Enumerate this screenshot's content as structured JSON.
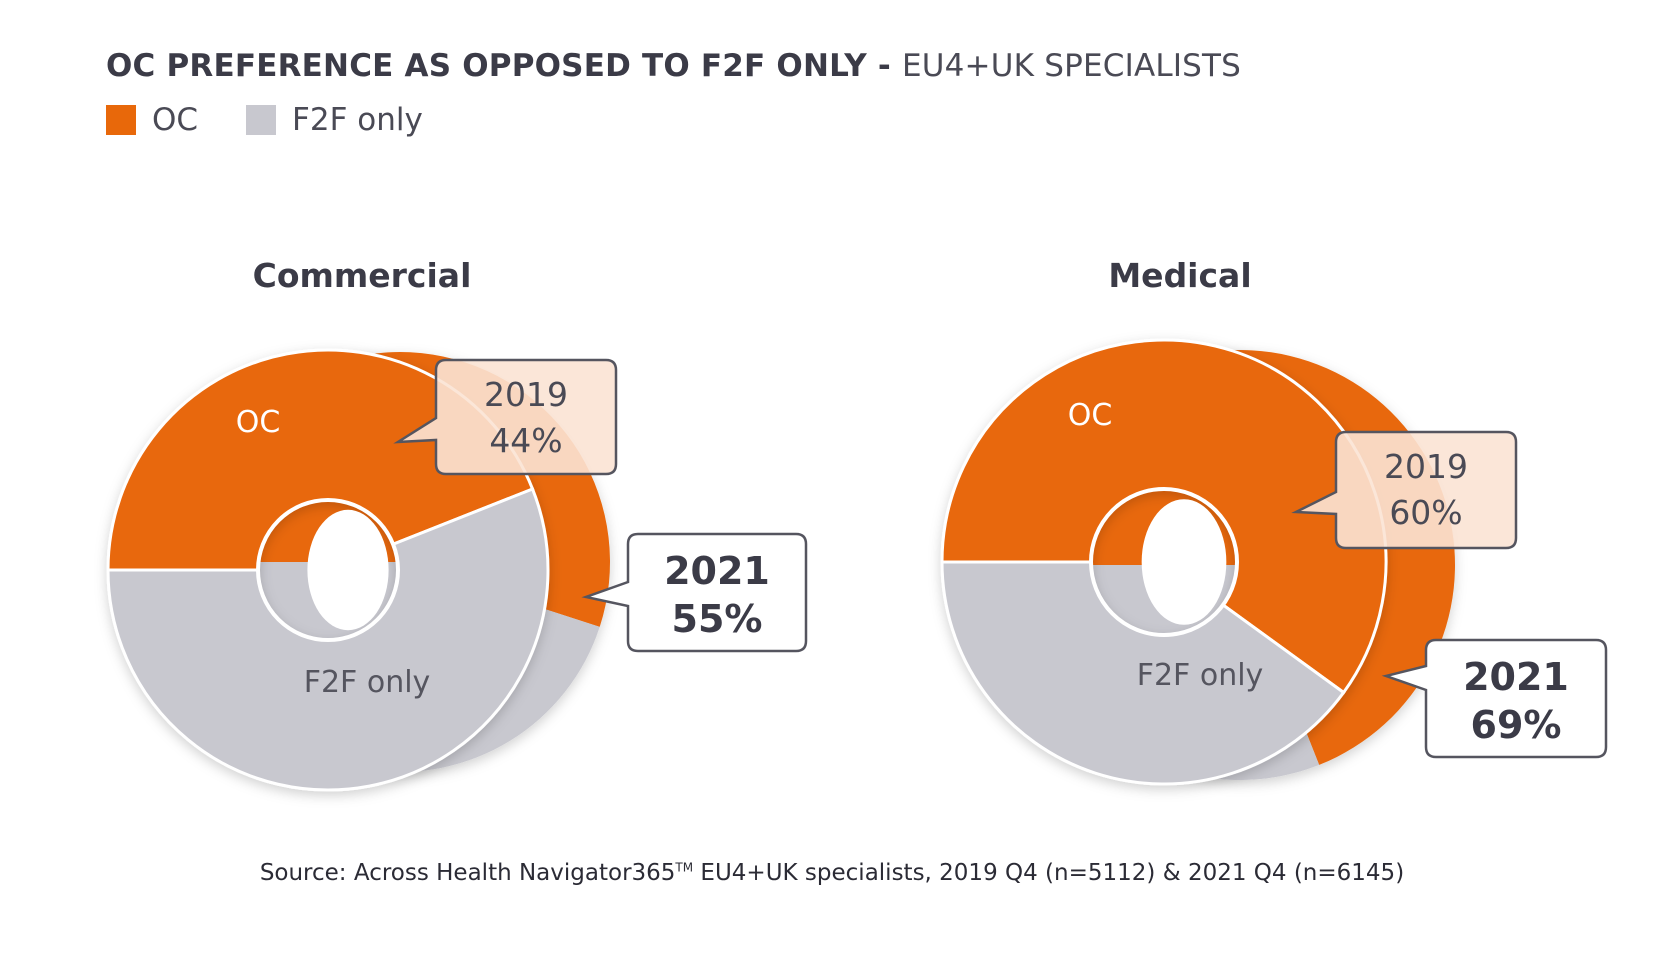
{
  "header": {
    "title_main": "OC PREFERENCE AS OPPOSED TO F2F ONLY - ",
    "title_sub": "EU4+UK SPECIALISTS"
  },
  "legend": [
    {
      "label": "OC",
      "color": "#e8680a"
    },
    {
      "label": "F2F only",
      "color": "#c8c8cf"
    }
  ],
  "colors": {
    "oc": "#e8680a",
    "f2f": "#c8c8cf",
    "callout_2019_fill": "#fbe3d4",
    "callout_border": "#55555f"
  },
  "chart_data": [
    {
      "type": "pie",
      "title": "Commercial",
      "categories": [
        "OC",
        "F2F only"
      ],
      "slice_labels": [
        "OC",
        "F2F only"
      ],
      "series": [
        {
          "name": "2019",
          "values": [
            44,
            56
          ],
          "callout_year": "2019",
          "callout_value": "44%"
        },
        {
          "name": "2021",
          "values": [
            55,
            45
          ],
          "callout_year": "2021",
          "callout_value": "55%"
        }
      ]
    },
    {
      "type": "pie",
      "title": "Medical",
      "categories": [
        "OC",
        "F2F only"
      ],
      "slice_labels": [
        "OC",
        "F2F only"
      ],
      "series": [
        {
          "name": "2019",
          "values": [
            60,
            40
          ],
          "callout_year": "2019",
          "callout_value": "60%"
        },
        {
          "name": "2021",
          "values": [
            69,
            31
          ],
          "callout_year": "2021",
          "callout_value": "69%"
        }
      ]
    }
  ],
  "footer": {
    "source_prefix": "Source: Across Health Navigator365",
    "source_tm": "TM",
    "source_suffix": " EU4+UK specialists, 2019 Q4 (n=5112) & 2021 Q4 (n=6145)"
  }
}
